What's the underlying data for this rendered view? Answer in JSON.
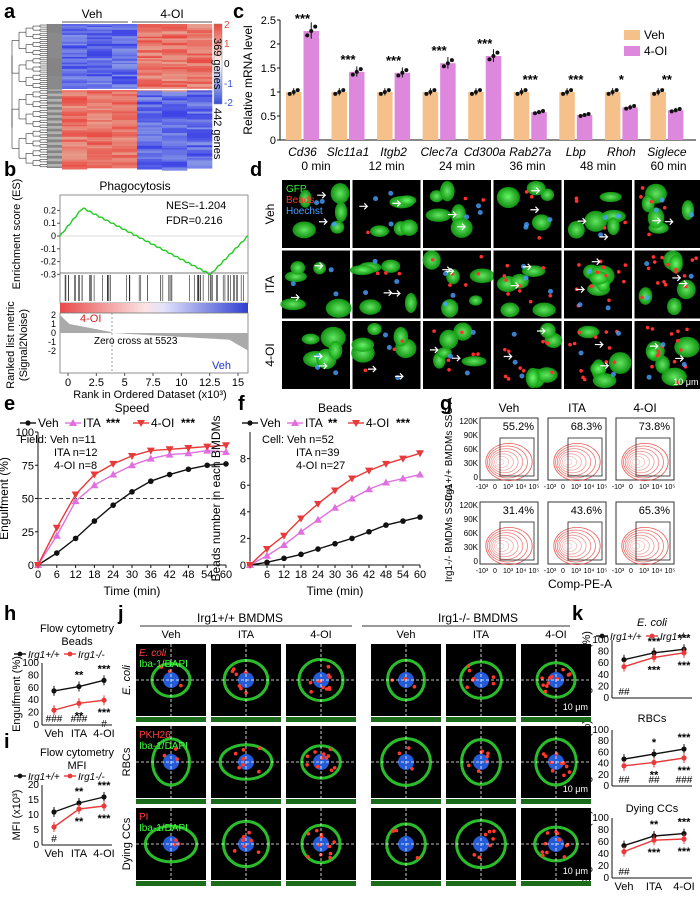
{
  "panels": {
    "a": "a",
    "b": "b",
    "c": "c",
    "d": "d",
    "e": "e",
    "f": "f",
    "g": "g",
    "h": "h",
    "i": "i",
    "j": "j",
    "k": "k"
  },
  "heatmap": {
    "groups": [
      "Veh",
      "4-OI"
    ],
    "clusters": [
      "369 genes",
      "442 genes"
    ],
    "colorbar_ticks": [
      "2",
      "1",
      "0",
      "-1",
      "-2"
    ],
    "colors": {
      "high": "#e8473a",
      "low": "#3550d8",
      "mid": "#ffffff"
    }
  },
  "gsea": {
    "title": "Phagocytosis",
    "nes": "NES=-1.204",
    "fdr": "FDR=0.216",
    "ylabel_top": "Enrichment score (ES)",
    "ylabel_bottom": "Ranked list metric (Signal2Noise)",
    "xlabel": "Rank in Ordered Dataset (x10³)",
    "label_left": "4-OI",
    "label_right": "Veh",
    "zero_cross": "Zero cross at 5523",
    "yticks_top": [
      "0.2",
      "0.1",
      "0",
      "-0.1",
      "-0.2",
      "-0.3"
    ],
    "yticks_bottom": [
      "2",
      "1",
      "0",
      "-1",
      "-2"
    ],
    "xticks": [
      "0",
      "2.5",
      "5",
      "7.5",
      "10",
      "12.5",
      "15"
    ]
  },
  "chart_data": [
    {
      "id": "c",
      "type": "bar",
      "ylabel": "Relative mRNA level",
      "ylim": [
        0,
        2.5
      ],
      "yticks": [
        "0",
        "0.5",
        "1",
        "1.5",
        "2",
        "2.5"
      ],
      "categories": [
        "Cd36",
        "Slc11a1",
        "Itgb2",
        "Clec7a",
        "Cd300a",
        "Rab27a",
        "Lbp",
        "Rhoh",
        "Siglece"
      ],
      "series": [
        {
          "name": "Veh",
          "values": [
            1,
            1,
            1,
            1,
            1,
            1,
            1,
            1,
            1
          ],
          "color": "#f5c08a"
        },
        {
          "name": "4-OI",
          "values": [
            2.27,
            1.42,
            1.4,
            1.6,
            1.75,
            0.58,
            0.52,
            0.68,
            0.62
          ],
          "color": "#dd88dd"
        }
      ],
      "significance": [
        "***",
        "***",
        "***",
        "***",
        "***",
        "***",
        "***",
        "*",
        "**"
      ]
    },
    {
      "id": "e",
      "type": "line",
      "title": "Speed",
      "xlabel": "Time (min)",
      "ylabel": "Engulfment (%)",
      "ylim": [
        0,
        100
      ],
      "yticks": [
        "0",
        "25",
        "50",
        "75",
        "100"
      ],
      "x": [
        0,
        6,
        12,
        18,
        24,
        30,
        36,
        42,
        48,
        54,
        60
      ],
      "xticks": [
        "0",
        "6",
        "12",
        "18",
        "24",
        "30",
        "36",
        "42",
        "48",
        "54",
        "60"
      ],
      "series": [
        {
          "name": "Veh",
          "sig": "",
          "values": [
            0,
            9,
            20,
            33,
            45,
            55,
            63,
            68,
            72,
            75,
            76
          ],
          "color": "#111111"
        },
        {
          "name": "ITA",
          "sig": "***",
          "values": [
            0,
            22,
            48,
            60,
            68,
            75,
            80,
            83,
            84,
            86,
            85
          ],
          "color": "#e070e0"
        },
        {
          "name": "4-OI",
          "sig": "***",
          "values": [
            0,
            28,
            53,
            68,
            76,
            82,
            86,
            87,
            88,
            89,
            90
          ],
          "color": "#e83a3a"
        }
      ],
      "field_label": "Field:",
      "n_labels": [
        "Veh n=11",
        "ITA n=12",
        "4-OI n=8"
      ]
    },
    {
      "id": "f",
      "type": "line",
      "title": "Beads",
      "xlabel": "Time (min)",
      "ylabel": "Beads number in each BMDMs",
      "ylim": [
        0,
        10
      ],
      "yticks": [
        "0",
        "2",
        "4",
        "6",
        "8"
      ],
      "x": [
        0,
        6,
        12,
        18,
        24,
        30,
        36,
        42,
        48,
        54,
        60
      ],
      "xticks": [
        "6",
        "12",
        "18",
        "24",
        "30",
        "36",
        "42",
        "48",
        "54",
        "60"
      ],
      "series": [
        {
          "name": "Veh",
          "sig": "",
          "values": [
            0,
            0.2,
            0.5,
            0.8,
            1.2,
            1.6,
            2.0,
            2.5,
            3.0,
            3.3,
            3.6
          ],
          "color": "#111111"
        },
        {
          "name": "ITA",
          "sig": "**",
          "values": [
            0,
            0.7,
            1.5,
            2.5,
            3.4,
            4.3,
            5.0,
            5.7,
            6.2,
            6.5,
            6.8
          ],
          "color": "#e070e0"
        },
        {
          "name": "4-OI",
          "sig": "***",
          "values": [
            0,
            1.2,
            2.2,
            3.5,
            4.6,
            5.6,
            6.5,
            7.1,
            7.6,
            8.0,
            8.4
          ],
          "color": "#e83a3a"
        }
      ],
      "field_label": "Cell:",
      "n_labels": [
        "Veh n=52",
        "ITA n=39",
        "4-OI n=27"
      ]
    },
    {
      "id": "h",
      "type": "line",
      "title": "Flow cytometry Beads",
      "ylabel": "Engulfment (%)",
      "ylim": [
        0,
        100
      ],
      "yticks": [
        "0",
        "20",
        "40",
        "60",
        "80",
        "100"
      ],
      "categories": [
        "Veh",
        "ITA",
        "4-OI"
      ],
      "series": [
        {
          "name": "Irg1+/+",
          "values": [
            55,
            62,
            72
          ],
          "color": "#111111"
        },
        {
          "name": "Irg1-/-",
          "values": [
            24,
            35,
            40
          ],
          "color": "#e83a3a"
        }
      ],
      "sig_top": [
        "",
        "**",
        "***"
      ],
      "sig_bottom": [
        "",
        "**",
        "***"
      ],
      "sig_extra": [
        "",
        "",
        "#"
      ],
      "sig_hash": [
        "###",
        "###",
        ""
      ]
    },
    {
      "id": "i",
      "type": "line",
      "title": "Flow cytometry MFI",
      "ylabel": "MFI (x10³)",
      "ylim": [
        0,
        20
      ],
      "yticks": [
        "0",
        "5",
        "10",
        "15",
        "20"
      ],
      "categories": [
        "Veh",
        "ITA",
        "4-OI"
      ],
      "series": [
        {
          "name": "Irg1+/+",
          "values": [
            11,
            14,
            16
          ],
          "color": "#111111"
        },
        {
          "name": "Irg1-/-",
          "values": [
            6,
            12,
            13
          ],
          "color": "#e83a3a"
        }
      ],
      "sig_top": [
        "",
        "**",
        "***"
      ],
      "sig_bottom": [
        "",
        "**",
        "***"
      ],
      "sig_hash": [
        "#",
        "",
        ""
      ]
    },
    {
      "id": "k1",
      "type": "line",
      "title": "E. coli",
      "ylabel": "Engulfment (%)",
      "ylim": [
        0,
        100
      ],
      "yticks": [
        "0",
        "20",
        "40",
        "60",
        "80",
        "100"
      ],
      "categories": [
        "Veh",
        "ITA",
        "4-OI"
      ],
      "series": [
        {
          "name": "Irg1+/+",
          "values": [
            66,
            78,
            84
          ],
          "color": "#111111"
        },
        {
          "name": "Irg1-/-",
          "values": [
            54,
            70,
            78
          ],
          "color": "#e83a3a"
        }
      ],
      "sig_top": [
        "",
        "***",
        "***"
      ],
      "sig_bottom": [
        "",
        "***",
        "***"
      ],
      "sig_hash": [
        "##",
        "",
        ""
      ]
    },
    {
      "id": "k2",
      "type": "line",
      "title": "RBCs",
      "ylabel": "Engulfment (%)",
      "ylim": [
        0,
        100
      ],
      "yticks": [
        "0",
        "20",
        "40",
        "60",
        "80",
        "100"
      ],
      "categories": [
        "Veh",
        "ITA",
        "4-OI"
      ],
      "series": [
        {
          "name": "Irg1+/+",
          "values": [
            48,
            57,
            66
          ],
          "color": "#111111"
        },
        {
          "name": "Irg1-/-",
          "values": [
            36,
            42,
            50
          ],
          "color": "#e83a3a"
        }
      ],
      "sig_top": [
        "",
        "*",
        "***"
      ],
      "sig_bottom": [
        "",
        "**",
        "***"
      ],
      "sig_hash": [
        "##",
        "##",
        "###"
      ]
    },
    {
      "id": "k3",
      "type": "line",
      "title": "Dying CCs",
      "ylabel": "Engulfment (%)",
      "ylim": [
        0,
        100
      ],
      "yticks": [
        "0",
        "20",
        "40",
        "60",
        "80",
        "100"
      ],
      "categories": [
        "Veh",
        "ITA",
        "4-OI"
      ],
      "series": [
        {
          "name": "Irg1+/+",
          "values": [
            54,
            70,
            74
          ],
          "color": "#111111"
        },
        {
          "name": "Irg1-/-",
          "values": [
            44,
            63,
            65
          ],
          "color": "#e83a3a"
        }
      ],
      "sig_top": [
        "",
        "**",
        "***"
      ],
      "sig_bottom": [
        "",
        "***",
        "***"
      ],
      "sig_hash": [
        "##",
        "",
        ""
      ]
    }
  ],
  "panel_d": {
    "timepoints": [
      "0 min",
      "12 min",
      "24 min",
      "36 min",
      "48 min",
      "60 min"
    ],
    "rows": [
      "Veh",
      "ITA",
      "4-OI"
    ],
    "legend": [
      "GFP",
      "Beads",
      "Hoechst"
    ],
    "legend_colors": [
      "#3cf03c",
      "#ff3030",
      "#4aa0ff"
    ],
    "scalebar": "10 μm"
  },
  "panel_g": {
    "columns": [
      "Veh",
      "ITA",
      "4-OI"
    ],
    "row1_label": "Irg1+/+ BMDMs SSC-A",
    "row2_label": "Irg1-/- BMDMs SSC-A",
    "row1_pct": [
      "55.2%",
      "68.3%",
      "73.8%"
    ],
    "row2_pct": [
      "31.4%",
      "43.6%",
      "65.3%"
    ],
    "yticks": [
      "120K",
      "90K",
      "60K",
      "30K",
      "0"
    ],
    "xticks": [
      "-10³",
      "0",
      "10³",
      "10⁴",
      "10⁵"
    ],
    "xlabel": "Comp-PE-A"
  },
  "panel_j": {
    "group_left": "Irg1+/+ BMDMS",
    "group_right": "Irg1-/- BMDMS",
    "columns": [
      "Veh",
      "ITA",
      "4-OI",
      "Veh",
      "ITA",
      "4-OI"
    ],
    "rows": [
      "E. coli",
      "RBCs",
      "Dying CCs"
    ],
    "row_legends": [
      [
        "E. coli",
        "Iba-1/DAPI"
      ],
      [
        "PKH26",
        "Iba-1/DAPI"
      ],
      [
        "PI",
        "Iba-1/DAPI"
      ]
    ],
    "scalebar": "10 μm"
  },
  "legend_genotype": [
    "Irg1+/+",
    "Irg1-/-"
  ]
}
